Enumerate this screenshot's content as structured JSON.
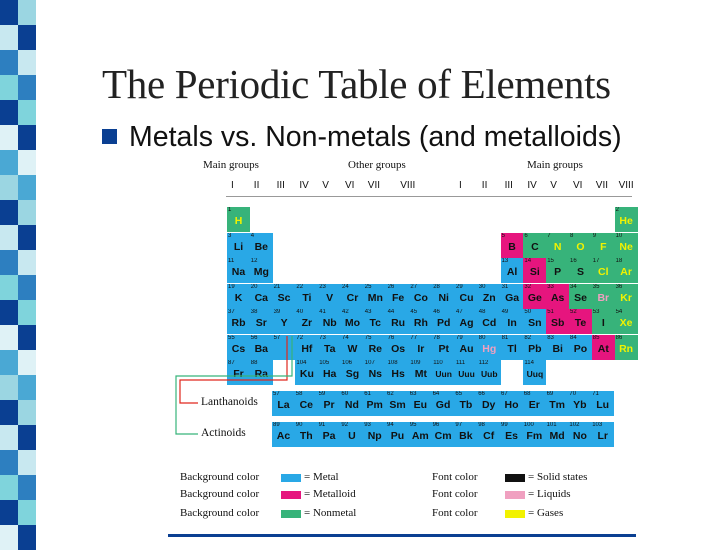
{
  "slide": {
    "title": "The Periodic Table of Elements",
    "bullet": "Metals vs. Non-metals (and metalloids)"
  },
  "colors": {
    "metal": "#29a8e6",
    "metalloid": "#e6157e",
    "nonmetal": "#37b37a",
    "solid_font": "#111111",
    "liquid_font": "#f0a0c0",
    "gas_font": "#f2f200",
    "accent_blue": "#0a3f92",
    "rule_red": "#e0271d"
  },
  "headers": {
    "main_groups_left": "Main groups",
    "other_groups": "Other groups",
    "main_groups_right": "Main groups",
    "roman": [
      "I",
      "II",
      "III",
      "IV",
      "V",
      "VI",
      "VII",
      "VIII",
      "I",
      "II",
      "III",
      "IV",
      "V",
      "VI",
      "VII",
      "VIII"
    ]
  },
  "series_labels": {
    "lanthanoids": "Lanthanoids",
    "actinoids": "Actinoids"
  },
  "legend": {
    "bg_label": "Background color",
    "font_label": "Font color",
    "metal": "= Metal",
    "metalloid": "= Metalloid",
    "nonmetal": "= Nonmetal",
    "solid": "= Solid states",
    "liquid": "= Liquids",
    "gas": "= Gases"
  },
  "elements": [
    {
      "n": "1",
      "s": "H",
      "c": 0,
      "r": 0,
      "t": "n",
      "f": "g"
    },
    {
      "n": "2",
      "s": "He",
      "c": 17,
      "r": 0,
      "t": "n",
      "f": "g"
    },
    {
      "n": "3",
      "s": "Li",
      "c": 0,
      "r": 1,
      "t": "m",
      "f": "s"
    },
    {
      "n": "4",
      "s": "Be",
      "c": 1,
      "r": 1,
      "t": "m",
      "f": "s"
    },
    {
      "n": "5",
      "s": "B",
      "c": 12,
      "r": 1,
      "t": "x",
      "f": "s"
    },
    {
      "n": "6",
      "s": "C",
      "c": 13,
      "r": 1,
      "t": "n",
      "f": "s"
    },
    {
      "n": "7",
      "s": "N",
      "c": 14,
      "r": 1,
      "t": "n",
      "f": "g"
    },
    {
      "n": "8",
      "s": "O",
      "c": 15,
      "r": 1,
      "t": "n",
      "f": "g"
    },
    {
      "n": "9",
      "s": "F",
      "c": 16,
      "r": 1,
      "t": "n",
      "f": "g"
    },
    {
      "n": "10",
      "s": "Ne",
      "c": 17,
      "r": 1,
      "t": "n",
      "f": "g"
    },
    {
      "n": "11",
      "s": "Na",
      "c": 0,
      "r": 2,
      "t": "m",
      "f": "s"
    },
    {
      "n": "12",
      "s": "Mg",
      "c": 1,
      "r": 2,
      "t": "m",
      "f": "s"
    },
    {
      "n": "13",
      "s": "Al",
      "c": 12,
      "r": 2,
      "t": "m",
      "f": "s"
    },
    {
      "n": "14",
      "s": "Si",
      "c": 13,
      "r": 2,
      "t": "x",
      "f": "s"
    },
    {
      "n": "15",
      "s": "P",
      "c": 14,
      "r": 2,
      "t": "n",
      "f": "s"
    },
    {
      "n": "16",
      "s": "S",
      "c": 15,
      "r": 2,
      "t": "n",
      "f": "s"
    },
    {
      "n": "17",
      "s": "Cl",
      "c": 16,
      "r": 2,
      "t": "n",
      "f": "g"
    },
    {
      "n": "18",
      "s": "Ar",
      "c": 17,
      "r": 2,
      "t": "n",
      "f": "g"
    },
    {
      "n": "19",
      "s": "K",
      "c": 0,
      "r": 3,
      "t": "m",
      "f": "s"
    },
    {
      "n": "20",
      "s": "Ca",
      "c": 1,
      "r": 3,
      "t": "m",
      "f": "s"
    },
    {
      "n": "21",
      "s": "Sc",
      "c": 2,
      "r": 3,
      "t": "m",
      "f": "s"
    },
    {
      "n": "22",
      "s": "Ti",
      "c": 3,
      "r": 3,
      "t": "m",
      "f": "s"
    },
    {
      "n": "23",
      "s": "V",
      "c": 4,
      "r": 3,
      "t": "m",
      "f": "s"
    },
    {
      "n": "24",
      "s": "Cr",
      "c": 5,
      "r": 3,
      "t": "m",
      "f": "s"
    },
    {
      "n": "25",
      "s": "Mn",
      "c": 6,
      "r": 3,
      "t": "m",
      "f": "s"
    },
    {
      "n": "26",
      "s": "Fe",
      "c": 7,
      "r": 3,
      "t": "m",
      "f": "s"
    },
    {
      "n": "27",
      "s": "Co",
      "c": 8,
      "r": 3,
      "t": "m",
      "f": "s"
    },
    {
      "n": "28",
      "s": "Ni",
      "c": 9,
      "r": 3,
      "t": "m",
      "f": "s"
    },
    {
      "n": "29",
      "s": "Cu",
      "c": 10,
      "r": 3,
      "t": "m",
      "f": "s"
    },
    {
      "n": "30",
      "s": "Zn",
      "c": 11,
      "r": 3,
      "t": "m",
      "f": "s"
    },
    {
      "n": "31",
      "s": "Ga",
      "c": 12,
      "r": 3,
      "t": "m",
      "f": "s"
    },
    {
      "n": "32",
      "s": "Ge",
      "c": 13,
      "r": 3,
      "t": "x",
      "f": "s"
    },
    {
      "n": "33",
      "s": "As",
      "c": 14,
      "r": 3,
      "t": "x",
      "f": "s"
    },
    {
      "n": "34",
      "s": "Se",
      "c": 15,
      "r": 3,
      "t": "n",
      "f": "s"
    },
    {
      "n": "35",
      "s": "Br",
      "c": 16,
      "r": 3,
      "t": "n",
      "f": "l"
    },
    {
      "n": "36",
      "s": "Kr",
      "c": 17,
      "r": 3,
      "t": "n",
      "f": "g"
    },
    {
      "n": "37",
      "s": "Rb",
      "c": 0,
      "r": 4,
      "t": "m",
      "f": "s"
    },
    {
      "n": "38",
      "s": "Sr",
      "c": 1,
      "r": 4,
      "t": "m",
      "f": "s"
    },
    {
      "n": "39",
      "s": "Y",
      "c": 2,
      "r": 4,
      "t": "m",
      "f": "s"
    },
    {
      "n": "40",
      "s": "Zr",
      "c": 3,
      "r": 4,
      "t": "m",
      "f": "s"
    },
    {
      "n": "41",
      "s": "Nb",
      "c": 4,
      "r": 4,
      "t": "m",
      "f": "s"
    },
    {
      "n": "42",
      "s": "Mo",
      "c": 5,
      "r": 4,
      "t": "m",
      "f": "s"
    },
    {
      "n": "43",
      "s": "Tc",
      "c": 6,
      "r": 4,
      "t": "m",
      "f": "s"
    },
    {
      "n": "44",
      "s": "Ru",
      "c": 7,
      "r": 4,
      "t": "m",
      "f": "s"
    },
    {
      "n": "45",
      "s": "Rh",
      "c": 8,
      "r": 4,
      "t": "m",
      "f": "s"
    },
    {
      "n": "46",
      "s": "Pd",
      "c": 9,
      "r": 4,
      "t": "m",
      "f": "s"
    },
    {
      "n": "47",
      "s": "Ag",
      "c": 10,
      "r": 4,
      "t": "m",
      "f": "s"
    },
    {
      "n": "48",
      "s": "Cd",
      "c": 11,
      "r": 4,
      "t": "m",
      "f": "s"
    },
    {
      "n": "49",
      "s": "In",
      "c": 12,
      "r": 4,
      "t": "m",
      "f": "s"
    },
    {
      "n": "50",
      "s": "Sn",
      "c": 13,
      "r": 4,
      "t": "m",
      "f": "s"
    },
    {
      "n": "51",
      "s": "Sb",
      "c": 14,
      "r": 4,
      "t": "x",
      "f": "s"
    },
    {
      "n": "52",
      "s": "Te",
      "c": 15,
      "r": 4,
      "t": "x",
      "f": "s"
    },
    {
      "n": "53",
      "s": "I",
      "c": 16,
      "r": 4,
      "t": "n",
      "f": "s"
    },
    {
      "n": "54",
      "s": "Xe",
      "c": 17,
      "r": 4,
      "t": "n",
      "f": "g"
    },
    {
      "n": "55",
      "s": "Cs",
      "c": 0,
      "r": 5,
      "t": "m",
      "f": "s"
    },
    {
      "n": "56",
      "s": "Ba",
      "c": 1,
      "r": 5,
      "t": "m",
      "f": "s"
    },
    {
      "n": "57",
      "s": "",
      "c": 2,
      "r": 5,
      "t": "m",
      "f": "s"
    },
    {
      "n": "72",
      "s": "Hf",
      "c": 3,
      "r": 5,
      "t": "m",
      "f": "s"
    },
    {
      "n": "73",
      "s": "Ta",
      "c": 4,
      "r": 5,
      "t": "m",
      "f": "s"
    },
    {
      "n": "74",
      "s": "W",
      "c": 5,
      "r": 5,
      "t": "m",
      "f": "s"
    },
    {
      "n": "75",
      "s": "Re",
      "c": 6,
      "r": 5,
      "t": "m",
      "f": "s"
    },
    {
      "n": "76",
      "s": "Os",
      "c": 7,
      "r": 5,
      "t": "m",
      "f": "s"
    },
    {
      "n": "77",
      "s": "Ir",
      "c": 8,
      "r": 5,
      "t": "m",
      "f": "s"
    },
    {
      "n": "78",
      "s": "Pt",
      "c": 9,
      "r": 5,
      "t": "m",
      "f": "s"
    },
    {
      "n": "79",
      "s": "Au",
      "c": 10,
      "r": 5,
      "t": "m",
      "f": "s"
    },
    {
      "n": "80",
      "s": "Hg",
      "c": 11,
      "r": 5,
      "t": "m",
      "f": "l"
    },
    {
      "n": "81",
      "s": "Tl",
      "c": 12,
      "r": 5,
      "t": "m",
      "f": "s"
    },
    {
      "n": "82",
      "s": "Pb",
      "c": 13,
      "r": 5,
      "t": "m",
      "f": "s"
    },
    {
      "n": "83",
      "s": "Bi",
      "c": 14,
      "r": 5,
      "t": "m",
      "f": "s"
    },
    {
      "n": "84",
      "s": "Po",
      "c": 15,
      "r": 5,
      "t": "m",
      "f": "s"
    },
    {
      "n": "85",
      "s": "At",
      "c": 16,
      "r": 5,
      "t": "x",
      "f": "s"
    },
    {
      "n": "86",
      "s": "Rn",
      "c": 17,
      "r": 5,
      "t": "n",
      "f": "g"
    },
    {
      "n": "87",
      "s": "Fr",
      "c": 0,
      "r": 6,
      "t": "m",
      "f": "s"
    },
    {
      "n": "88",
      "s": "Ra",
      "c": 1,
      "r": 6,
      "t": "m",
      "f": "s"
    },
    {
      "n": "104",
      "s": "Ku",
      "c": 3,
      "r": 6,
      "t": "m",
      "f": "s"
    },
    {
      "n": "105",
      "s": "Ha",
      "c": 4,
      "r": 6,
      "t": "m",
      "f": "s"
    },
    {
      "n": "106",
      "s": "Sg",
      "c": 5,
      "r": 6,
      "t": "m",
      "f": "s"
    },
    {
      "n": "107",
      "s": "Ns",
      "c": 6,
      "r": 6,
      "t": "m",
      "f": "s"
    },
    {
      "n": "108",
      "s": "Hs",
      "c": 7,
      "r": 6,
      "t": "m",
      "f": "s"
    },
    {
      "n": "109",
      "s": "Mt",
      "c": 8,
      "r": 6,
      "t": "m",
      "f": "s"
    },
    {
      "n": "110",
      "s": "Uun",
      "c": 9,
      "r": 6,
      "t": "m",
      "f": "s"
    },
    {
      "n": "111",
      "s": "Uuu",
      "c": 10,
      "r": 6,
      "t": "m",
      "f": "s"
    },
    {
      "n": "112",
      "s": "Uub",
      "c": 11,
      "r": 6,
      "t": "m",
      "f": "s"
    },
    {
      "n": "114",
      "s": "Uuq",
      "c": 13,
      "r": 6,
      "t": "m",
      "f": "s"
    }
  ],
  "lanthanoids": [
    {
      "n": "57",
      "s": "La"
    },
    {
      "n": "58",
      "s": "Ce"
    },
    {
      "n": "59",
      "s": "Pr"
    },
    {
      "n": "60",
      "s": "Nd"
    },
    {
      "n": "61",
      "s": "Pm"
    },
    {
      "n": "62",
      "s": "Sm"
    },
    {
      "n": "63",
      "s": "Eu"
    },
    {
      "n": "64",
      "s": "Gd"
    },
    {
      "n": "65",
      "s": "Tb"
    },
    {
      "n": "66",
      "s": "Dy"
    },
    {
      "n": "67",
      "s": "Ho"
    },
    {
      "n": "68",
      "s": "Er"
    },
    {
      "n": "69",
      "s": "Tm"
    },
    {
      "n": "70",
      "s": "Yb"
    },
    {
      "n": "71",
      "s": "Lu"
    }
  ],
  "actinoids": [
    {
      "n": "89",
      "s": "Ac"
    },
    {
      "n": "90",
      "s": "Th"
    },
    {
      "n": "91",
      "s": "Pa"
    },
    {
      "n": "92",
      "s": "U"
    },
    {
      "n": "93",
      "s": "Np"
    },
    {
      "n": "94",
      "s": "Pu"
    },
    {
      "n": "95",
      "s": "Am"
    },
    {
      "n": "96",
      "s": "Cm"
    },
    {
      "n": "97",
      "s": "Bk"
    },
    {
      "n": "98",
      "s": "Cf"
    },
    {
      "n": "99",
      "s": "Es"
    },
    {
      "n": "100",
      "s": "Fm"
    },
    {
      "n": "101",
      "s": "Md"
    },
    {
      "n": "102",
      "s": "No"
    },
    {
      "n": "103",
      "s": "Lr"
    }
  ]
}
